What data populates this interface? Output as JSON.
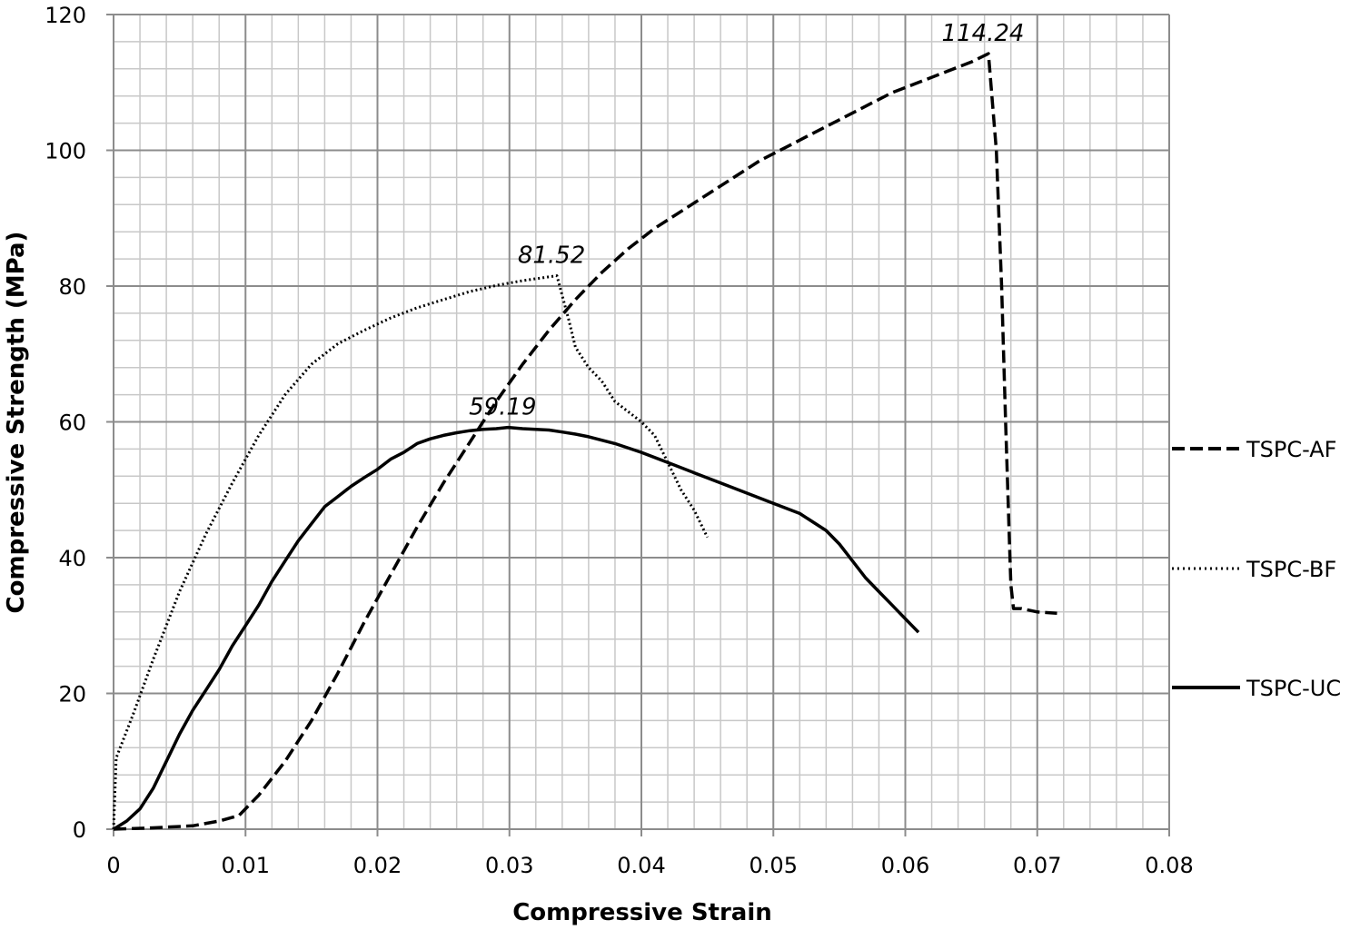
{
  "chart_data": {
    "type": "line",
    "title": "",
    "xlabel": "Compressive Strain",
    "ylabel": "Compressive Strength (MPa)",
    "xlim": [
      0,
      0.08
    ],
    "ylim": [
      0,
      120
    ],
    "x_major_ticks": [
      "0",
      "0.01",
      "0.02",
      "0.03",
      "0.04",
      "0.05",
      "0.06",
      "0.07",
      "0.08"
    ],
    "y_major_ticks": [
      "0",
      "20",
      "40",
      "60",
      "80",
      "100",
      "120"
    ],
    "x_tick_values": [
      0,
      0.01,
      0.02,
      0.03,
      0.04,
      0.05,
      0.06,
      0.07,
      0.08
    ],
    "y_tick_values": [
      0,
      20,
      40,
      60,
      80,
      100,
      120
    ],
    "minor_x_step": 0.002,
    "minor_y_step": 4,
    "grid": true,
    "legend_position": "right",
    "series": [
      {
        "name": "TSPC-AF",
        "style": "dashed",
        "color": "#000000",
        "x": [
          0,
          0.003,
          0.006,
          0.008,
          0.0095,
          0.011,
          0.013,
          0.015,
          0.017,
          0.019,
          0.021,
          0.023,
          0.025,
          0.027,
          0.029,
          0.031,
          0.033,
          0.035,
          0.037,
          0.039,
          0.041,
          0.043,
          0.045,
          0.047,
          0.049,
          0.051,
          0.053,
          0.055,
          0.057,
          0.059,
          0.061,
          0.063,
          0.065,
          0.0663,
          0.0669,
          0.0673,
          0.0676,
          0.0679,
          0.068,
          0.0682,
          0.0688,
          0.07,
          0.0715
        ],
        "y": [
          0,
          0.2,
          0.5,
          1.2,
          2.0,
          5.0,
          10.0,
          16.0,
          23.0,
          30.5,
          37.5,
          44.5,
          51.0,
          57.0,
          63.0,
          68.5,
          73.5,
          78.0,
          82.0,
          85.5,
          88.5,
          91.0,
          93.5,
          96.0,
          98.5,
          100.5,
          102.5,
          104.5,
          106.5,
          108.5,
          110.0,
          111.5,
          113.0,
          114.24,
          100.0,
          80.0,
          60.0,
          42.0,
          36.0,
          32.5,
          32.5,
          32.0,
          31.8
        ]
      },
      {
        "name": "TSPC-BF",
        "style": "dotted",
        "color": "#000000",
        "x": [
          0,
          0.0002,
          0.0015,
          0.003,
          0.005,
          0.007,
          0.009,
          0.011,
          0.013,
          0.015,
          0.017,
          0.019,
          0.021,
          0.023,
          0.025,
          0.027,
          0.029,
          0.031,
          0.0336,
          0.0345,
          0.035,
          0.036,
          0.037,
          0.038,
          0.04,
          0.041,
          0.042,
          0.043,
          0.044,
          0.045
        ],
        "y": [
          0,
          10.5,
          17.0,
          25.0,
          35.0,
          43.5,
          51.0,
          58.0,
          64.0,
          68.5,
          71.5,
          73.5,
          75.3,
          76.8,
          78.0,
          79.2,
          80.1,
          80.8,
          81.52,
          75.0,
          71.0,
          68.0,
          66.0,
          63.0,
          60.0,
          58.0,
          54.0,
          50.0,
          47.0,
          43.0
        ]
      },
      {
        "name": "TSPC-UC",
        "style": "solid",
        "color": "#000000",
        "x": [
          0,
          0.001,
          0.002,
          0.003,
          0.004,
          0.005,
          0.006,
          0.007,
          0.008,
          0.009,
          0.01,
          0.011,
          0.012,
          0.013,
          0.014,
          0.015,
          0.016,
          0.017,
          0.018,
          0.019,
          0.02,
          0.021,
          0.022,
          0.023,
          0.024,
          0.025,
          0.026,
          0.027,
          0.028,
          0.029,
          0.0299,
          0.031,
          0.032,
          0.033,
          0.034,
          0.035,
          0.036,
          0.037,
          0.038,
          0.04,
          0.042,
          0.044,
          0.046,
          0.048,
          0.05,
          0.052,
          0.054,
          0.055,
          0.056,
          0.057,
          0.058,
          0.059,
          0.06,
          0.061
        ],
        "y": [
          0,
          1.2,
          3.0,
          6.0,
          10.0,
          14.0,
          17.5,
          20.5,
          23.5,
          27.0,
          30.0,
          33.0,
          36.5,
          39.5,
          42.5,
          45.0,
          47.5,
          49.0,
          50.5,
          51.8,
          53.0,
          54.5,
          55.5,
          56.8,
          57.5,
          58.0,
          58.4,
          58.7,
          58.9,
          59.0,
          59.19,
          59.0,
          58.9,
          58.8,
          58.5,
          58.2,
          57.8,
          57.3,
          56.8,
          55.5,
          54.0,
          52.5,
          51.0,
          49.5,
          48.0,
          46.5,
          44.0,
          42.0,
          39.5,
          37.0,
          35.0,
          33.0,
          31.0,
          29.0
        ]
      }
    ],
    "annotations": [
      {
        "text": "114.24",
        "x": 0.0663,
        "y": 114.24,
        "series": "TSPC-AF"
      },
      {
        "text": "81.52",
        "x": 0.0336,
        "y": 81.52,
        "series": "TSPC-BF"
      },
      {
        "text": "59.19",
        "x": 0.0299,
        "y": 59.19,
        "series": "TSPC-UC"
      }
    ]
  }
}
